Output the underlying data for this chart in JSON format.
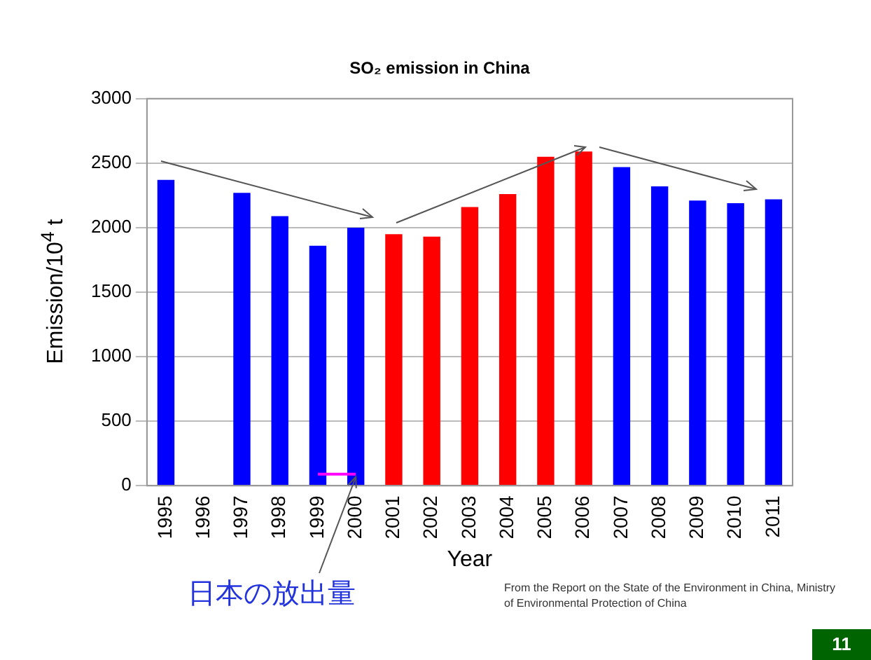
{
  "chart_data": {
    "type": "bar",
    "title": "SO₂ emission in China",
    "xlabel": "Year",
    "ylabel": "Emission/10$^{4}$ t",
    "categories": [
      "1995",
      "1996",
      "1997",
      "1998",
      "1999",
      "2000",
      "2001",
      "2002",
      "2003",
      "2004",
      "2005",
      "2006",
      "2007",
      "2008",
      "2009",
      "2010",
      "2011"
    ],
    "series": [
      {
        "type": "bar",
        "colors": [
          "#0000ff",
          "#0000ff",
          "#0000ff",
          "#0000ff",
          "#0000ff",
          "#0000ff",
          "#ff0000",
          "#ff0000",
          "#ff0000",
          "#ff0000",
          "#ff0000",
          "#ff0000",
          "#0000ff",
          "#0000ff",
          "#0000ff",
          "#0000ff",
          "#0000ff"
        ],
        "values": [
          2370,
          null,
          2270,
          2090,
          1860,
          2000,
          1950,
          1930,
          2160,
          2260,
          2550,
          2590,
          2470,
          2320,
          2210,
          2190,
          2220
        ]
      },
      {
        "type": "line",
        "color": "#ff00ff",
        "values": [
          null,
          null,
          null,
          null,
          90,
          90,
          null,
          null,
          null,
          null,
          null,
          null,
          null,
          null,
          null,
          null,
          null
        ]
      }
    ],
    "ylim": [
      0,
      3000
    ],
    "yticks": [
      0,
      500,
      1000,
      1500,
      2000,
      2500,
      3000
    ],
    "grid": "y",
    "legend": false,
    "annotations": [
      {
        "text": "日本の放出量",
        "x": "2000",
        "y": 90
      },
      "From the Report on the State of the Environment in China, Ministry of Environmental Protection of China",
      "11"
    ]
  }
}
